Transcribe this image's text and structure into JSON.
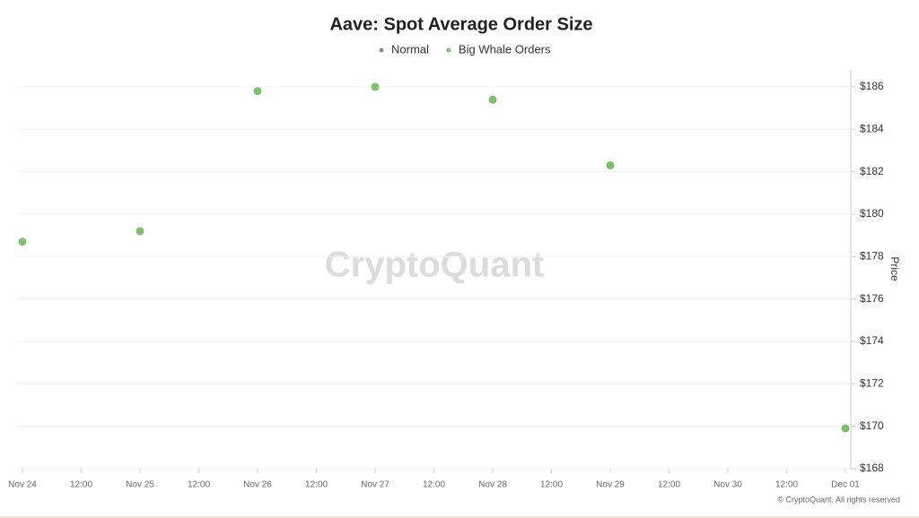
{
  "chart_data": {
    "type": "scatter",
    "title": "Aave: Spot Average Order Size",
    "categories": [
      "Nov 24",
      "12:00",
      "Nov 25",
      "12:00",
      "Nov 26",
      "12:00",
      "Nov 27",
      "12:00",
      "Nov 28",
      "12:00",
      "Nov 29",
      "12:00",
      "Nov 30",
      "12:00",
      "Dec 01"
    ],
    "series": [
      {
        "name": "Normal",
        "color": "#8c8c8c",
        "values": [
          null,
          null,
          null,
          null,
          null,
          null,
          null,
          null,
          null,
          null,
          null,
          null,
          null,
          null,
          null
        ]
      },
      {
        "name": "Big Whale Orders",
        "color": "#7dbf6a",
        "values": [
          178.7,
          null,
          179.2,
          null,
          185.8,
          null,
          186.0,
          null,
          185.4,
          null,
          182.3,
          null,
          null,
          null,
          169.9
        ]
      }
    ],
    "y_label": "Price",
    "ylim": [
      168,
      186.8
    ],
    "yticks": [
      {
        "value": 168,
        "label": "$168"
      },
      {
        "value": 170,
        "label": "$170"
      },
      {
        "value": 172,
        "label": "$172"
      },
      {
        "value": 174,
        "label": "$174"
      },
      {
        "value": 176,
        "label": "$176"
      },
      {
        "value": 178,
        "label": "$178"
      },
      {
        "value": 180,
        "label": "$180"
      },
      {
        "value": 182,
        "label": "$182"
      },
      {
        "value": 184,
        "label": "$184"
      },
      {
        "value": 186,
        "label": "$186"
      }
    ],
    "grid": true,
    "watermark": "CryptoQuant",
    "credit": "© CryptoQuant. All rights reserved"
  }
}
